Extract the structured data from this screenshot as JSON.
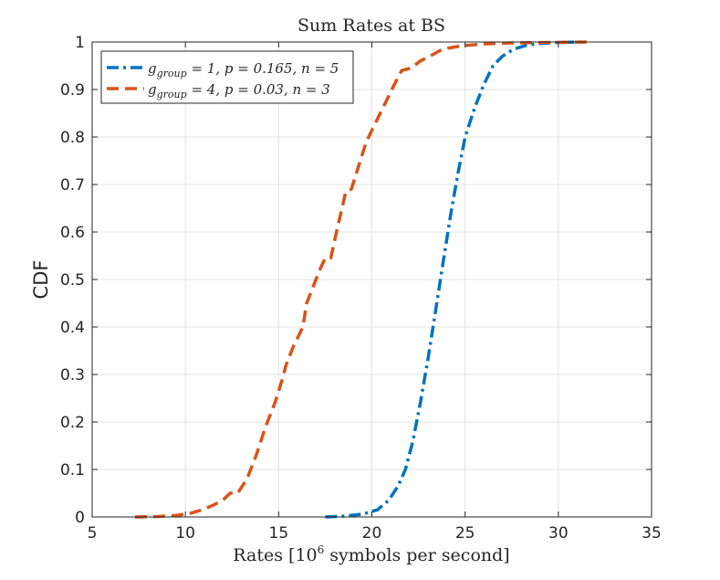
{
  "chart_data": {
    "type": "line",
    "title": "Sum Rates at BS",
    "xlabel_prefix": "Rates [10",
    "xlabel_sup": "6",
    "xlabel_suffix": " symbols per second]",
    "ylabel": "CDF",
    "xlim": [
      5,
      35
    ],
    "ylim": [
      0,
      1
    ],
    "xticks": [
      5,
      10,
      15,
      20,
      25,
      30,
      35
    ],
    "xtick_labels": [
      "5",
      "10",
      "15",
      "20",
      "25",
      "30",
      "35"
    ],
    "yticks": [
      0,
      0.1,
      0.2,
      0.3,
      0.4,
      0.5,
      0.6,
      0.7,
      0.8,
      0.9,
      1
    ],
    "ytick_labels": [
      "0",
      "0.1",
      "0.2",
      "0.3",
      "0.4",
      "0.5",
      "0.6",
      "0.7",
      "0.8",
      "0.9",
      "1"
    ],
    "grid": true,
    "legend_position": "top-left",
    "series": [
      {
        "name": "g_group = 1, p = 0.165, n = 5",
        "legend_label": "g group = 1, p = 0.165, n = 5",
        "legend_main": "g",
        "legend_sub": "group",
        "legend_rest": " = 1, p = 0.165, n = 5",
        "color": "#0072BD",
        "dash": "dashdot",
        "points": [
          [
            17.5,
            0.0
          ],
          [
            18.5,
            0.002
          ],
          [
            19.5,
            0.006
          ],
          [
            20.3,
            0.015
          ],
          [
            20.9,
            0.035
          ],
          [
            21.4,
            0.065
          ],
          [
            21.8,
            0.1
          ],
          [
            22.2,
            0.16
          ],
          [
            22.6,
            0.24
          ],
          [
            23.0,
            0.33
          ],
          [
            23.4,
            0.43
          ],
          [
            23.8,
            0.53
          ],
          [
            24.2,
            0.63
          ],
          [
            24.6,
            0.72
          ],
          [
            25.0,
            0.8
          ],
          [
            25.5,
            0.86
          ],
          [
            26.0,
            0.91
          ],
          [
            26.5,
            0.95
          ],
          [
            27.0,
            0.97
          ],
          [
            27.6,
            0.985
          ],
          [
            28.3,
            0.993
          ],
          [
            29.0,
            0.997
          ],
          [
            30.0,
            0.999
          ],
          [
            31.2,
            1.0
          ]
        ]
      },
      {
        "name": "g_group = 4, p = 0.03, n = 3",
        "legend_label": "g group = 4, p = 0.03, n = 3",
        "legend_main": "g",
        "legend_sub": "group",
        "legend_rest": " = 4, p = 0.03, n = 3",
        "color": "#D95319",
        "dash": "dashed",
        "points": [
          [
            7.3,
            0.0
          ],
          [
            8.5,
            0.001
          ],
          [
            9.5,
            0.003
          ],
          [
            10.3,
            0.008
          ],
          [
            10.9,
            0.015
          ],
          [
            11.5,
            0.025
          ],
          [
            12.0,
            0.035
          ],
          [
            12.4,
            0.05
          ],
          [
            12.8,
            0.05
          ],
          [
            13.3,
            0.08
          ],
          [
            13.8,
            0.13
          ],
          [
            14.3,
            0.19
          ],
          [
            14.8,
            0.24
          ],
          [
            15.2,
            0.29
          ],
          [
            15.4,
            0.32
          ],
          [
            15.8,
            0.36
          ],
          [
            16.3,
            0.4
          ],
          [
            16.5,
            0.45
          ],
          [
            16.9,
            0.49
          ],
          [
            17.2,
            0.52
          ],
          [
            17.5,
            0.545
          ],
          [
            17.8,
            0.545
          ],
          [
            18.1,
            0.6
          ],
          [
            18.4,
            0.65
          ],
          [
            18.6,
            0.685
          ],
          [
            18.9,
            0.69
          ],
          [
            19.3,
            0.74
          ],
          [
            19.7,
            0.79
          ],
          [
            20.2,
            0.83
          ],
          [
            20.7,
            0.87
          ],
          [
            21.2,
            0.91
          ],
          [
            21.6,
            0.94
          ],
          [
            22.1,
            0.945
          ],
          [
            22.6,
            0.96
          ],
          [
            23.1,
            0.97
          ],
          [
            23.8,
            0.985
          ],
          [
            24.8,
            0.992
          ],
          [
            26.0,
            0.996
          ],
          [
            27.5,
            0.998
          ],
          [
            29.5,
            0.999
          ],
          [
            31.6,
            1.0
          ]
        ]
      }
    ]
  }
}
